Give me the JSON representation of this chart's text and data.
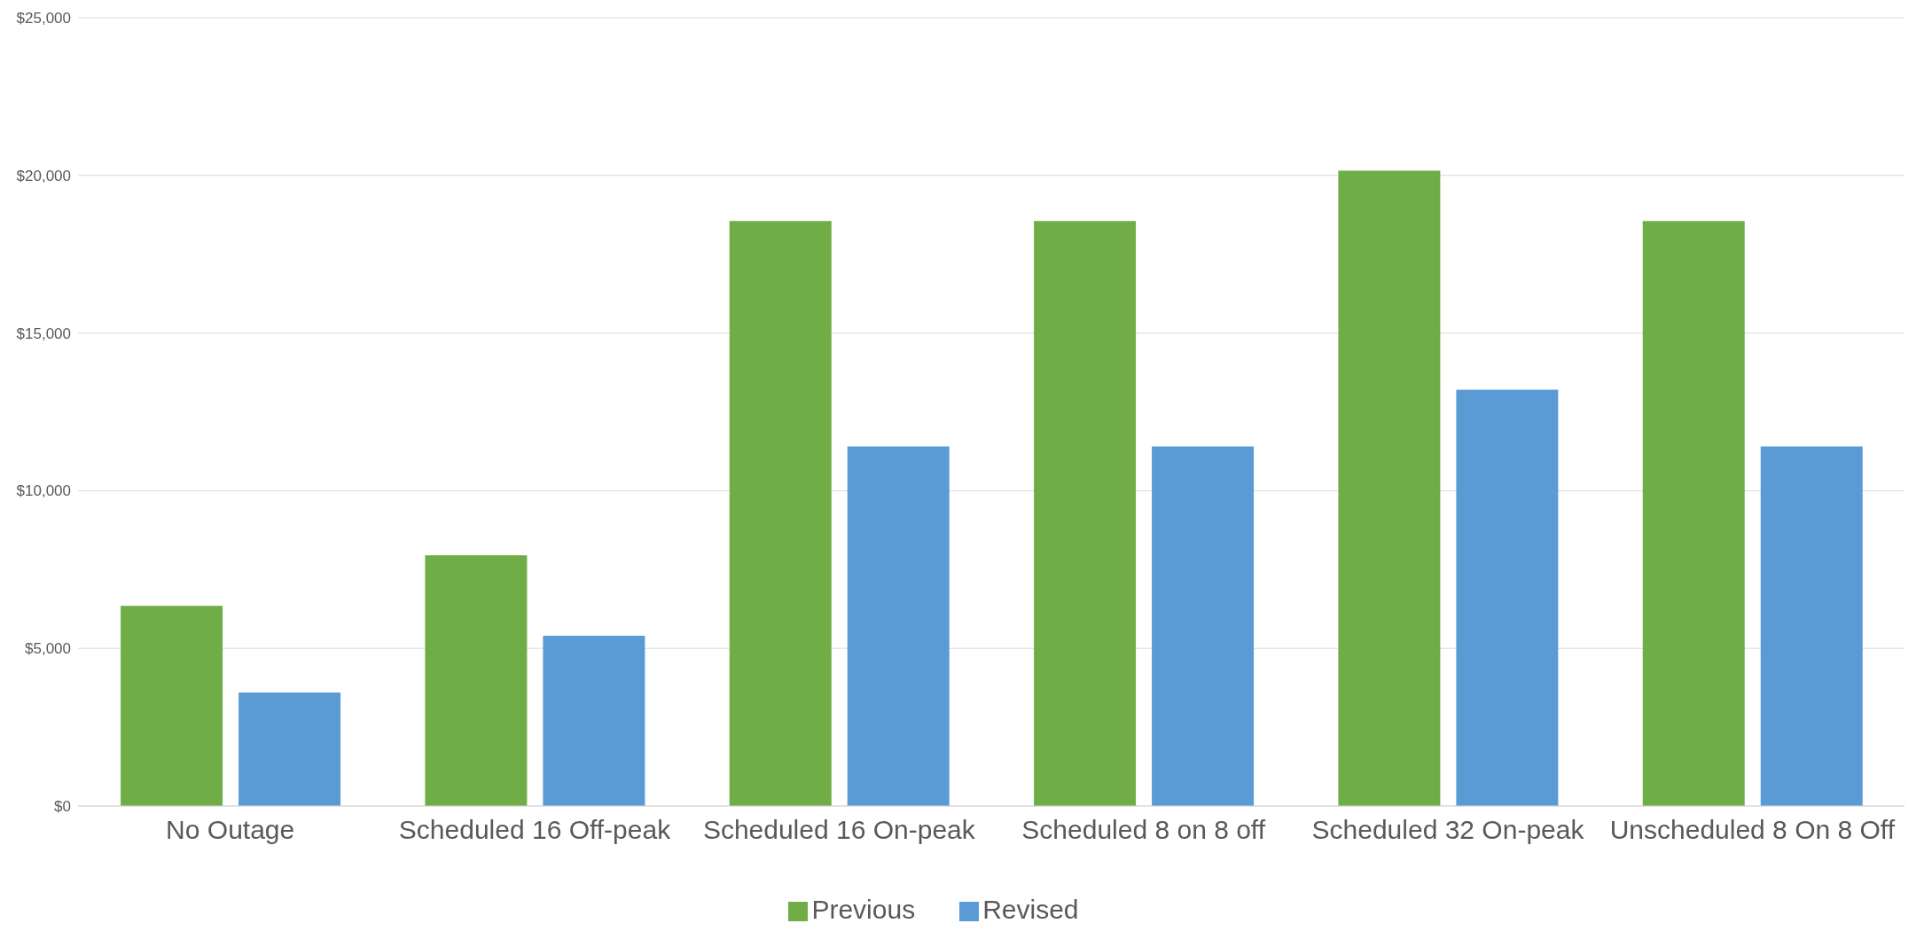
{
  "chart_data": {
    "type": "bar",
    "categories": [
      "No Outage",
      "Scheduled 16 Off-peak",
      "Scheduled 16 On-peak",
      "Scheduled 8 on 8 off",
      "Scheduled 32 On-peak",
      "Unscheduled 8 On 8 Off"
    ],
    "series": [
      {
        "name": "Previous",
        "color": "#70ad47",
        "values": [
          6350,
          7950,
          18550,
          18550,
          20150,
          18550
        ]
      },
      {
        "name": "Revised",
        "color": "#5b9bd5",
        "values": [
          3600,
          5400,
          11400,
          11400,
          13200,
          11400
        ]
      }
    ],
    "ylim": [
      0,
      25000
    ],
    "yticks": [
      {
        "value": 0,
        "label": "$0"
      },
      {
        "value": 5000,
        "label": "$5,000"
      },
      {
        "value": 10000,
        "label": "$10,000"
      },
      {
        "value": 15000,
        "label": "$15,000"
      },
      {
        "value": 20000,
        "label": "$20,000"
      },
      {
        "value": 25000,
        "label": "$25,000"
      }
    ],
    "grid": "y",
    "legend": "bottom"
  }
}
